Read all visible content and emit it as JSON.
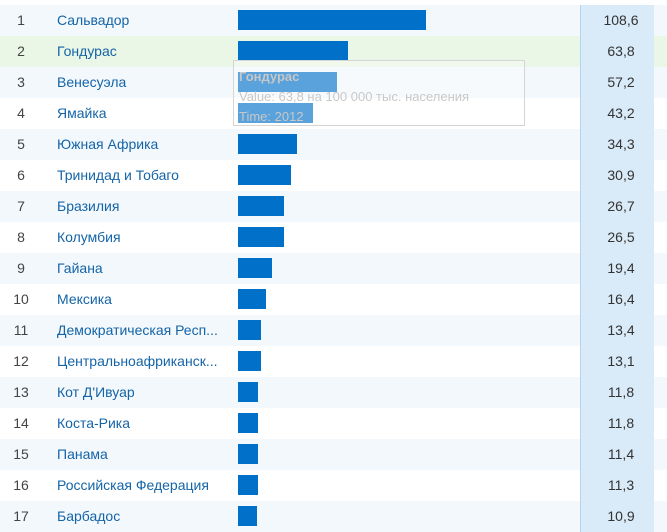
{
  "chart_data": {
    "type": "bar",
    "orientation": "horizontal",
    "ranks": [
      "1",
      "2",
      "3",
      "4",
      "5",
      "6",
      "7",
      "8",
      "9",
      "10",
      "11",
      "12",
      "13",
      "14",
      "15",
      "16",
      "17"
    ],
    "categories": [
      "Сальвадор",
      "Гондурас",
      "Венесуэла",
      "Ямайка",
      "Южная Африка",
      "Тринидад и Тобаго",
      "Бразилия",
      "Колумбия",
      "Гайана",
      "Мексика",
      "Демократическая Респ...",
      "Центральноафриканск...",
      "Кот Д'Ивуар",
      "Коста-Рика",
      "Панама",
      "Российская Федерация",
      "Барбадос"
    ],
    "values": [
      108.6,
      63.8,
      57.2,
      43.2,
      34.3,
      30.9,
      26.7,
      26.5,
      19.4,
      16.4,
      13.4,
      13.1,
      11.8,
      11.8,
      11.4,
      11.3,
      10.9
    ],
    "value_labels": [
      "108,6",
      "63,8",
      "57,2",
      "43,2",
      "34,3",
      "30,9",
      "26,7",
      "26,5",
      "19,4",
      "16,4",
      "13,4",
      "13,1",
      "11,8",
      "11,8",
      "11,4",
      "11,3",
      "10,9"
    ],
    "highlighted_index": 1,
    "colors": {
      "bar": "#0070c8",
      "name": "#1464a8",
      "highlight_row": "#eaf6e6",
      "value_column": "#d9eaf8"
    }
  },
  "tooltip": {
    "title": "Гондурас",
    "value_line": "Value: 63,8 на 100 000 тыс. населения",
    "time_line": "Time: 2012"
  }
}
